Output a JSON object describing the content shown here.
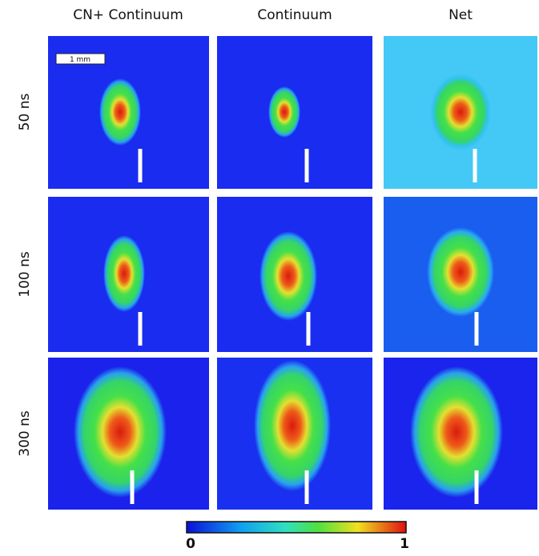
{
  "columns": [
    "CN+ Continuum",
    "Continuum",
    "Net"
  ],
  "rows": [
    "50 ns",
    "100 ns",
    "300 ns"
  ],
  "scale_bar": "1 mm",
  "colorbar": {
    "min_label": "0",
    "max_label": "1"
  }
}
